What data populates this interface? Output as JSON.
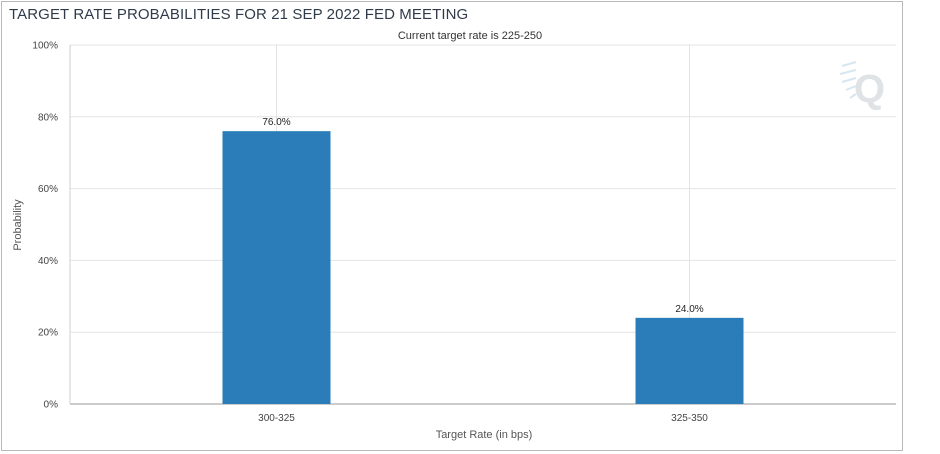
{
  "chart_data": {
    "type": "bar",
    "title": "TARGET RATE PROBABILITIES FOR 21 SEP 2022 FED MEETING",
    "subtitle": "Current target rate is 225-250",
    "xlabel": "Target Rate (in bps)",
    "ylabel": "Probability",
    "categories": [
      "300-325",
      "325-350"
    ],
    "values": [
      76.0,
      24.0
    ],
    "value_labels": [
      "76.0%",
      "24.0%"
    ],
    "ylim": [
      0,
      100
    ],
    "yticks": [
      "0%",
      "20%",
      "40%",
      "60%",
      "80%",
      "100%"
    ],
    "ytick_values": [
      0,
      20,
      40,
      60,
      80,
      100
    ],
    "bar_color": "#2a7db8",
    "grid": true,
    "legend": "none"
  }
}
